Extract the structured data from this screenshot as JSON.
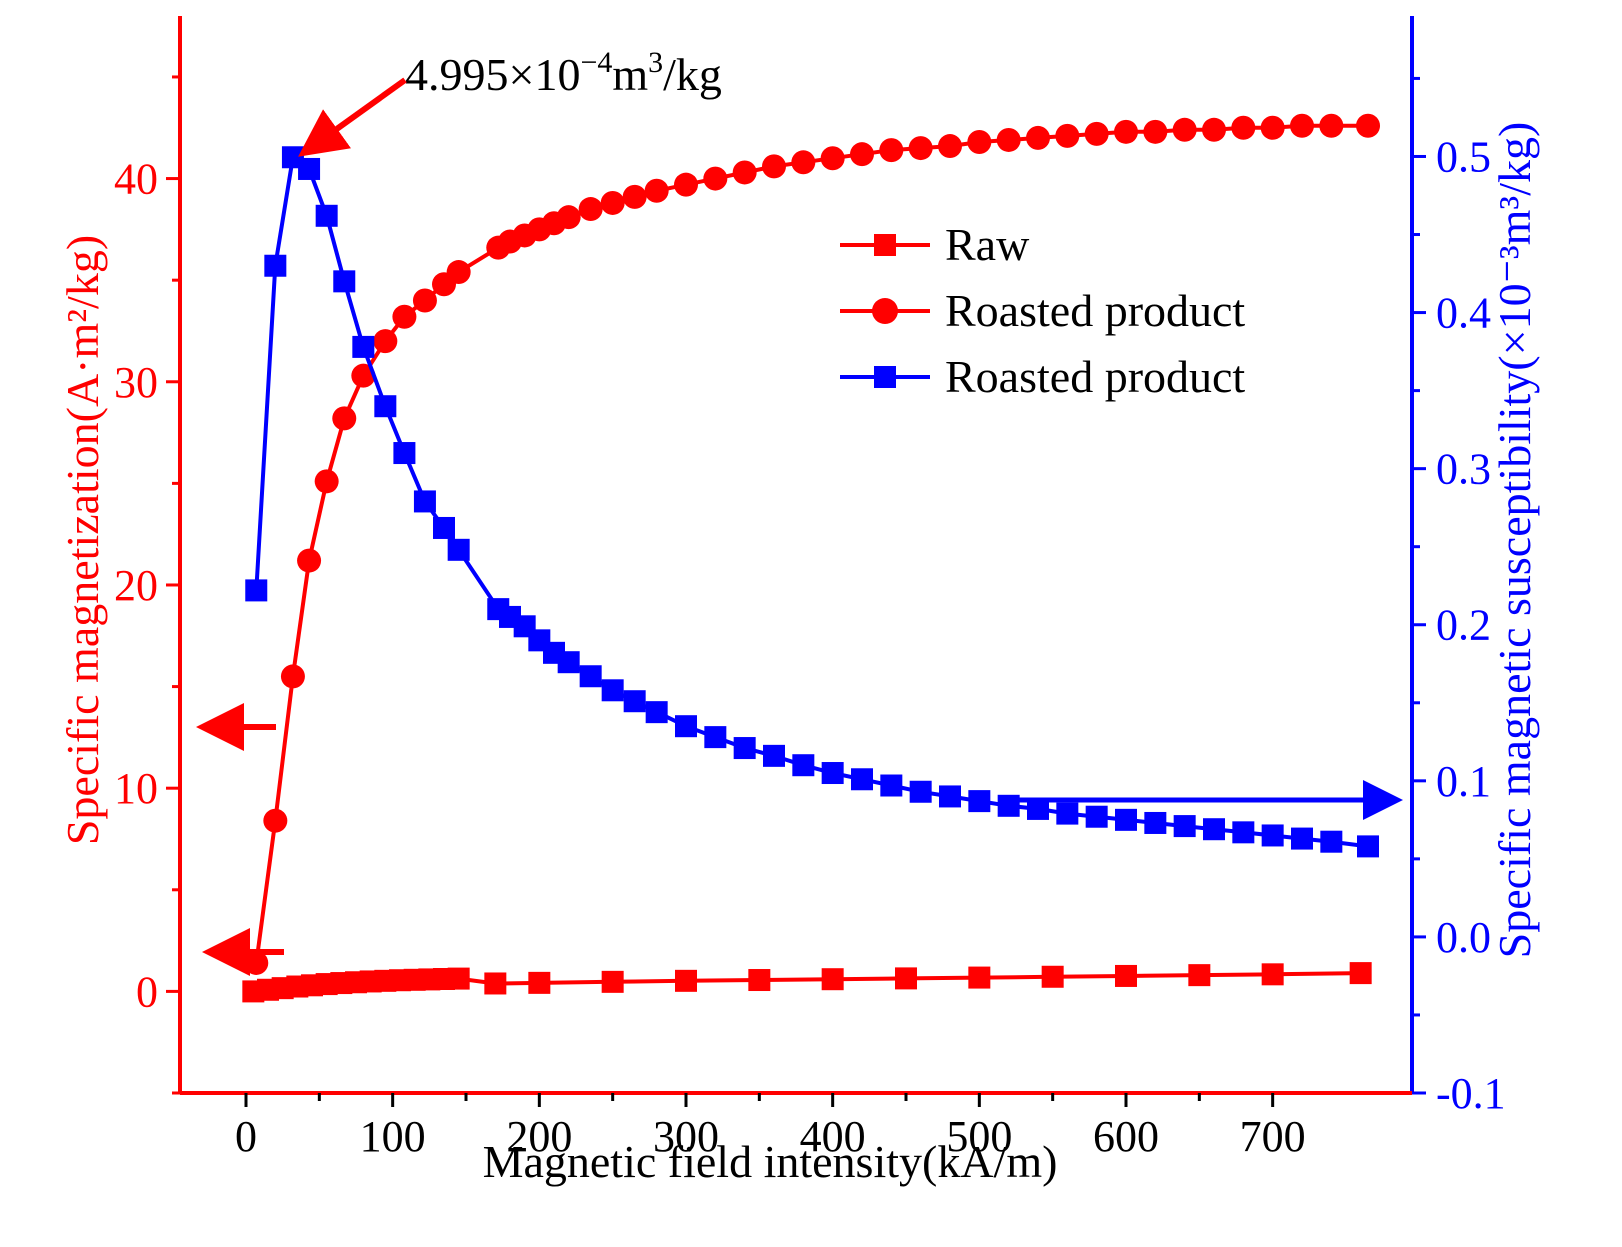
{
  "chart_data": {
    "type": "line",
    "x_axis": {
      "label": "Magnetic field intensity(kA/m)",
      "range": [
        -45,
        795
      ],
      "ticks": [
        0,
        100,
        200,
        300,
        400,
        500,
        600,
        700
      ]
    },
    "y_left": {
      "label": "Specific magnetization(A·m²/kg)",
      "range": [
        -5,
        48
      ],
      "ticks": [
        0,
        10,
        20,
        30,
        40
      ],
      "color": "#ff0000"
    },
    "y_right": {
      "label": "Specific magnetic susceptibility(×10⁻³m³/kg)",
      "range": [
        -0.1,
        0.59
      ],
      "ticks": [
        -0.1,
        0.0,
        0.1,
        0.2,
        0.3,
        0.4,
        0.5
      ],
      "tick_labels": [
        "-0.1",
        "0.0",
        "0.1",
        "0.2",
        "0.3",
        "0.4",
        "0.5"
      ],
      "color": "#0000ff"
    },
    "series": [
      {
        "name": "Raw",
        "axis": "left",
        "color": "#ff0000",
        "marker": "square",
        "x": [
          5,
          15,
          25,
          35,
          45,
          55,
          65,
          75,
          85,
          95,
          105,
          115,
          125,
          135,
          145,
          170,
          200,
          250,
          300,
          350,
          400,
          450,
          500,
          550,
          600,
          650,
          700,
          760
        ],
        "y": [
          0.0,
          0.08,
          0.16,
          0.24,
          0.3,
          0.36,
          0.41,
          0.45,
          0.49,
          0.52,
          0.55,
          0.57,
          0.59,
          0.61,
          0.63,
          0.39,
          0.42,
          0.47,
          0.52,
          0.56,
          0.6,
          0.64,
          0.68,
          0.72,
          0.76,
          0.8,
          0.84,
          0.9
        ]
      },
      {
        "name": "Roasted product",
        "axis": "left",
        "color": "#ff0000",
        "marker": "circle",
        "x": [
          7,
          20,
          32,
          43,
          55,
          67,
          80,
          95,
          108,
          122,
          135,
          145,
          172,
          180,
          190,
          200,
          210,
          220,
          235,
          250,
          265,
          280,
          300,
          320,
          340,
          360,
          380,
          400,
          420,
          440,
          460,
          480,
          500,
          520,
          540,
          560,
          580,
          600,
          620,
          640,
          660,
          680,
          700,
          720,
          740,
          765
        ],
        "y": [
          1.4,
          8.4,
          15.5,
          21.2,
          25.1,
          28.2,
          30.3,
          32.0,
          33.2,
          34.0,
          34.8,
          35.4,
          36.6,
          36.9,
          37.2,
          37.5,
          37.8,
          38.1,
          38.5,
          38.8,
          39.1,
          39.4,
          39.7,
          40.0,
          40.3,
          40.6,
          40.8,
          41.0,
          41.2,
          41.4,
          41.5,
          41.6,
          41.8,
          41.9,
          42.0,
          42.1,
          42.2,
          42.3,
          42.3,
          42.4,
          42.4,
          42.5,
          42.5,
          42.6,
          42.6,
          42.6
        ]
      },
      {
        "name": "Roasted product",
        "axis": "right",
        "color": "#0000ff",
        "marker": "square",
        "x": [
          7,
          20,
          32,
          43,
          55,
          67,
          80,
          95,
          108,
          122,
          135,
          145,
          172,
          180,
          190,
          200,
          210,
          220,
          235,
          250,
          265,
          280,
          300,
          320,
          340,
          360,
          380,
          400,
          420,
          440,
          460,
          480,
          500,
          520,
          540,
          560,
          580,
          600,
          620,
          640,
          660,
          680,
          700,
          720,
          740,
          765
        ],
        "y": [
          0.222,
          0.43,
          0.4995,
          0.492,
          0.462,
          0.42,
          0.378,
          0.34,
          0.31,
          0.279,
          0.262,
          0.248,
          0.21,
          0.205,
          0.199,
          0.19,
          0.182,
          0.176,
          0.167,
          0.158,
          0.151,
          0.144,
          0.135,
          0.128,
          0.121,
          0.116,
          0.11,
          0.105,
          0.101,
          0.097,
          0.093,
          0.09,
          0.087,
          0.084,
          0.082,
          0.079,
          0.077,
          0.075,
          0.073,
          0.071,
          0.069,
          0.067,
          0.065,
          0.063,
          0.061,
          0.058
        ]
      }
    ],
    "annotation": {
      "prefix": "4.995×10",
      "exponent": "−4",
      "unit_base": "m",
      "unit_exponent": "3",
      "unit_suffix": "/kg",
      "target_x": 32,
      "target_y_right": 0.4995
    },
    "legend_position": "upper-right"
  }
}
